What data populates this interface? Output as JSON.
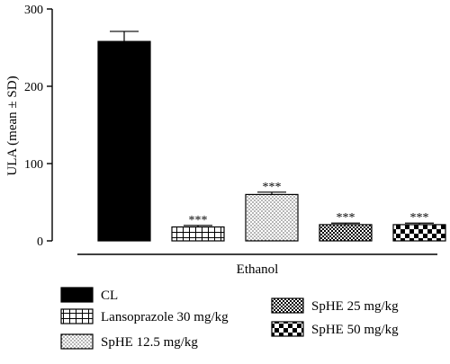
{
  "chart_data": {
    "type": "bar",
    "ylabel": "ULA (mean ± SD)",
    "xlabel": "Ethanol",
    "ylim": [
      0,
      300
    ],
    "yticks": [
      "0",
      "100",
      "200",
      "300"
    ],
    "series": [
      {
        "name": "CL",
        "value": 258,
        "sd": 13,
        "significance": "",
        "pattern": "solid"
      },
      {
        "name": "Lansoprazole 30 mg/kg",
        "value": 18,
        "sd": 2,
        "significance": "***",
        "pattern": "grid"
      },
      {
        "name": "SpHE 12.5 mg/kg",
        "value": 60,
        "sd": 3,
        "significance": "***",
        "pattern": "dots"
      },
      {
        "name": "SpHE 25 mg/kg",
        "value": 21,
        "sd": 2,
        "significance": "***",
        "pattern": "fine-checker"
      },
      {
        "name": "SpHE 50 mg/kg",
        "value": 21,
        "sd": 2,
        "significance": "***",
        "pattern": "coarse-checker"
      }
    ],
    "legend_position": "bottom",
    "grid": false
  }
}
